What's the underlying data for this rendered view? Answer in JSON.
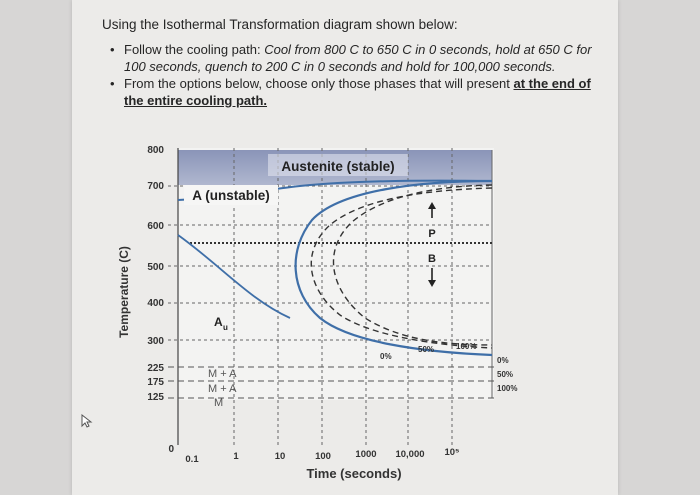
{
  "intro": "Using the Isothermal Transformation diagram shown below:",
  "bullets": [
    {
      "lead": "Follow the cooling path: ",
      "italic": "Cool from 800 C to 650 C in 0 seconds, hold at 650 C for 100 seconds, quench to 200 C in 0 seconds and hold for 100,000 seconds."
    },
    {
      "lead": "From the options below, choose only those phases that will present ",
      "underlined": "at the end of the entire cooling path.",
      "bold_italic": ""
    }
  ],
  "diagram": {
    "y_axis_label": "Temperature (C)",
    "x_axis_label": "Time (seconds)",
    "y_ticks": [
      "800",
      "700",
      "600",
      "500",
      "400",
      "300",
      "225",
      "175",
      "125",
      "0"
    ],
    "x_ticks": [
      "0.1",
      "1",
      "10",
      "100",
      "1000",
      "10,000",
      "10⁵"
    ],
    "labels": {
      "austenite_stable": "Austenite (stable)",
      "austenite_unstable": "A (unstable)",
      "p": "P",
      "b": "B",
      "a_u": "A",
      "a_u_sub": "u",
      "m_a_1": "M + A",
      "m_a_2": "M + A",
      "m": "M",
      "pct_0": "0%",
      "pct_50": "50%",
      "pct_100": "100%",
      "right_0": "0%",
      "right_50": "50%",
      "right_100": "100%"
    },
    "colors": {
      "curve": "#3f6fa8",
      "stable_band": "#9fa8c4"
    }
  }
}
